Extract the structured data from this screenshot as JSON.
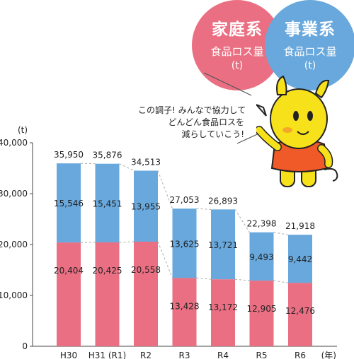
{
  "badges": {
    "household": {
      "title": "家庭系",
      "subtitle": "食品ロス量",
      "unit": "(t)",
      "color": "#ea6f82"
    },
    "business": {
      "title": "事業系",
      "subtitle": "食品ロス量",
      "unit": "(t)",
      "color": "#68a8dc"
    }
  },
  "speech": {
    "lines": [
      "この調子! みんなで協力して",
      "どんどん食品ロスを",
      "減らしていこう!"
    ]
  },
  "mascot": {
    "icon": "yellow-rhino-mascot-icon"
  },
  "chart_data": {
    "type": "bar",
    "stacked": true,
    "categories": [
      "H30",
      "H31 (R1)",
      "R2",
      "R3",
      "R4",
      "R5",
      "R6"
    ],
    "x_unit_label": "(年)",
    "y_unit_label": "(t)",
    "ylim": [
      0,
      40000
    ],
    "yticks": [
      0,
      10000,
      20000,
      30000,
      40000
    ],
    "ytick_labels": [
      "0",
      "10,000",
      "20,000",
      "30,000",
      "40,000"
    ],
    "series": [
      {
        "key": "household",
        "color": "#ea6f82",
        "values": [
          20404,
          20425,
          20558,
          13428,
          13172,
          12905,
          12476
        ],
        "labels": [
          "20,404",
          "20,425",
          "20,558",
          "13,428",
          "13,172",
          "12,905",
          "12,476"
        ]
      },
      {
        "key": "business",
        "color": "#68a8dc",
        "values": [
          15546,
          15451,
          13955,
          13625,
          13721,
          9493,
          9442
        ],
        "labels": [
          "15,546",
          "15,451",
          "13,955",
          "13,625",
          "13,721",
          "9,493",
          "9,442"
        ]
      }
    ],
    "totals": [
      35950,
      35876,
      34513,
      27053,
      26893,
      22398,
      21918
    ],
    "total_labels": [
      "35,950",
      "35,876",
      "34,513",
      "27,053",
      "26,893",
      "22,398",
      "21,918"
    ],
    "grid": false,
    "connector_lines": "dashed"
  }
}
